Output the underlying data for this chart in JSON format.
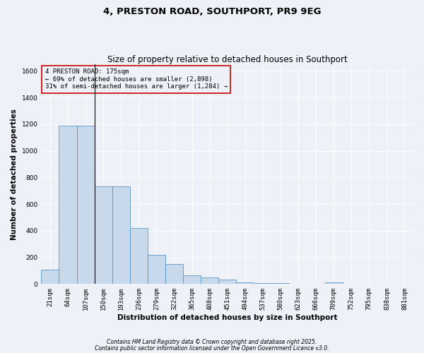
{
  "title": "4, PRESTON ROAD, SOUTHPORT, PR9 9EG",
  "subtitle": "Size of property relative to detached houses in Southport",
  "xlabel": "Distribution of detached houses by size in Southport",
  "ylabel": "Number of detached properties",
  "categories": [
    "21sqm",
    "64sqm",
    "107sqm",
    "150sqm",
    "193sqm",
    "236sqm",
    "279sqm",
    "322sqm",
    "365sqm",
    "408sqm",
    "451sqm",
    "494sqm",
    "537sqm",
    "580sqm",
    "623sqm",
    "666sqm",
    "709sqm",
    "752sqm",
    "795sqm",
    "838sqm",
    "881sqm"
  ],
  "values": [
    110,
    1190,
    1190,
    735,
    735,
    420,
    220,
    150,
    65,
    50,
    35,
    15,
    8,
    5,
    3,
    2,
    10,
    0,
    0,
    0,
    0
  ],
  "bar_color": "#c9d9ec",
  "bar_edge_color": "#5a96c8",
  "background_color": "#eef2f8",
  "grid_color": "#ffffff",
  "annotation_text": "4 PRESTON ROAD: 175sqm\n← 69% of detached houses are smaller (2,898)\n31% of semi-detached houses are larger (1,284) →",
  "annotation_box_edge": "#cc0000",
  "vline_x": 2.5,
  "ylim": [
    0,
    1650
  ],
  "yticks": [
    0,
    200,
    400,
    600,
    800,
    1000,
    1200,
    1400,
    1600
  ],
  "footer_line1": "Contains HM Land Registry data © Crown copyright and database right 2025.",
  "footer_line2": "Contains public sector information licensed under the Open Government Licence v3.0.",
  "title_fontsize": 9.5,
  "subtitle_fontsize": 8.5,
  "label_fontsize": 7.5,
  "tick_fontsize": 6.5,
  "annotation_fontsize": 6.5,
  "footer_fontsize": 5.5
}
